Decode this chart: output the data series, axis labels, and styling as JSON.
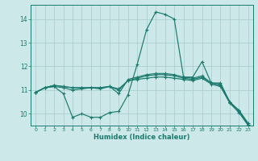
{
  "xlabel": "Humidex (Indice chaleur)",
  "ylabel": "",
  "bg_color": "#cce8e8",
  "line_color": "#1a7a6e",
  "grid_color": "#aed0d0",
  "xlim": [
    -0.5,
    23.5
  ],
  "ylim": [
    9.5,
    14.6
  ],
  "yticks": [
    10,
    11,
    12,
    13,
    14
  ],
  "xtick_labels": [
    "0",
    "1",
    "2",
    "3",
    "4",
    "5",
    "6",
    "7",
    "8",
    "9",
    "10",
    "11",
    "12",
    "13",
    "14",
    "15",
    "16",
    "17",
    "18",
    "19",
    "20",
    "21",
    "22",
    "23"
  ],
  "lines": [
    {
      "x": [
        0,
        1,
        2,
        3,
        4,
        5,
        6,
        7,
        8,
        9,
        10,
        11,
        12,
        13,
        14,
        15,
        16,
        17,
        18,
        19,
        20,
        21,
        22,
        23
      ],
      "y": [
        10.9,
        11.1,
        11.15,
        10.85,
        9.85,
        10.0,
        9.85,
        9.85,
        10.05,
        10.1,
        10.8,
        12.1,
        13.55,
        14.3,
        14.2,
        14.0,
        11.55,
        11.55,
        12.2,
        11.3,
        11.3,
        10.5,
        10.15,
        9.6
      ]
    },
    {
      "x": [
        0,
        1,
        2,
        3,
        4,
        5,
        6,
        7,
        8,
        9,
        10,
        11,
        12,
        13,
        14,
        15,
        16,
        17,
        18,
        19,
        20,
        21,
        22,
        23
      ],
      "y": [
        10.9,
        11.1,
        11.15,
        11.1,
        11.0,
        11.05,
        11.1,
        11.05,
        11.15,
        10.85,
        11.45,
        11.55,
        11.65,
        11.7,
        11.7,
        11.65,
        11.55,
        11.5,
        11.6,
        11.3,
        11.25,
        10.5,
        10.1,
        9.55
      ]
    },
    {
      "x": [
        0,
        1,
        2,
        3,
        4,
        5,
        6,
        7,
        8,
        9,
        10,
        11,
        12,
        13,
        14,
        15,
        16,
        17,
        18,
        19,
        20,
        21,
        22,
        23
      ],
      "y": [
        10.9,
        11.1,
        11.2,
        11.15,
        11.1,
        11.1,
        11.1,
        11.1,
        11.15,
        11.0,
        11.4,
        11.5,
        11.6,
        11.65,
        11.65,
        11.6,
        11.5,
        11.45,
        11.55,
        11.3,
        11.2,
        10.5,
        10.1,
        9.55
      ]
    },
    {
      "x": [
        0,
        1,
        2,
        3,
        4,
        5,
        6,
        7,
        8,
        9,
        10,
        11,
        12,
        13,
        14,
        15,
        16,
        17,
        18,
        19,
        20,
        21,
        22,
        23
      ],
      "y": [
        10.9,
        11.1,
        11.2,
        11.15,
        11.1,
        11.1,
        11.1,
        11.1,
        11.15,
        11.05,
        11.4,
        11.45,
        11.5,
        11.55,
        11.55,
        11.5,
        11.45,
        11.4,
        11.5,
        11.25,
        11.15,
        10.45,
        10.05,
        9.5
      ]
    }
  ]
}
